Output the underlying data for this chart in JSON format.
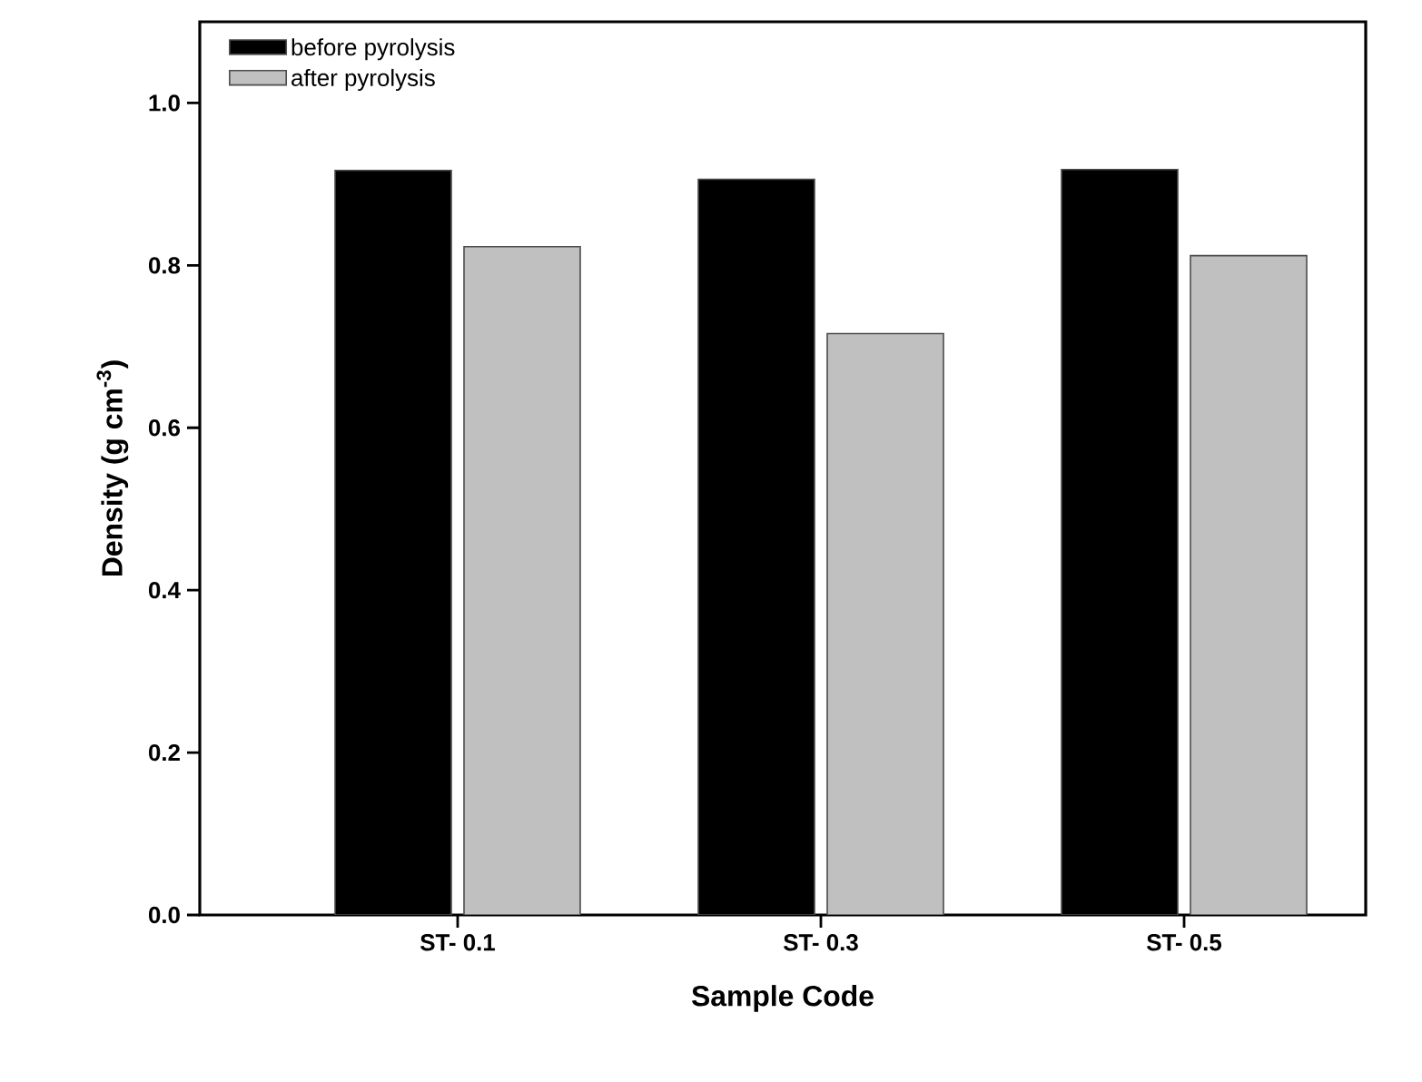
{
  "chart_data": {
    "type": "bar",
    "xlabel": "Sample Code",
    "ylabel": "Density (g cm$^{-3}$)",
    "categories": [
      "ST- 0.1",
      "ST- 0.3",
      "ST- 0.5"
    ],
    "series": [
      {
        "name": "before pyrolysis",
        "color": "#000000",
        "values": [
          0.917,
          0.906,
          0.918
        ]
      },
      {
        "name": "after pyrolysis",
        "color": "#c0c0c0",
        "values": [
          0.823,
          0.716,
          0.812
        ]
      }
    ],
    "ylim": [
      0,
      1.1
    ],
    "yticks": [
      {
        "value": 0,
        "label": "0.0"
      },
      0.2,
      0.4,
      0.6,
      0.8,
      {
        "value": 1,
        "label": "1.0"
      }
    ],
    "grid": false,
    "legend": "top left"
  }
}
